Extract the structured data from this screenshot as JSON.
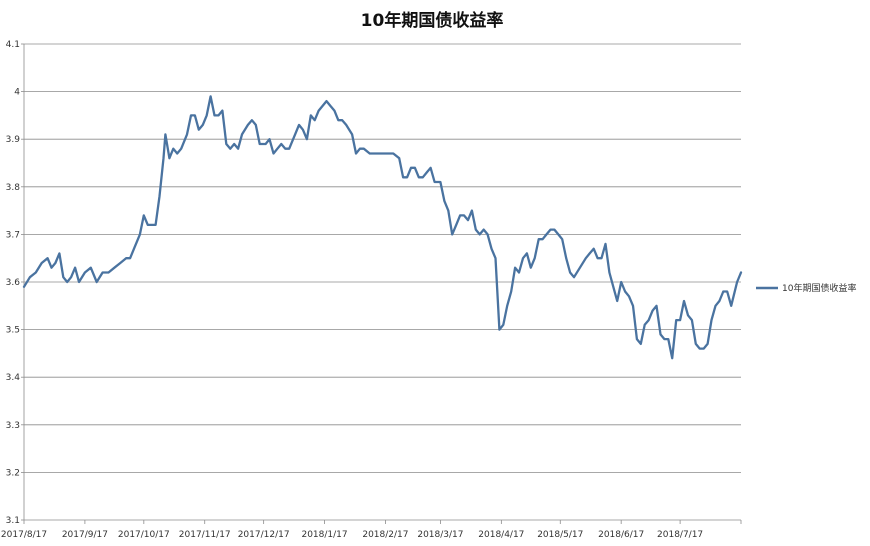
{
  "chart_data": {
    "type": "line",
    "title": "10年期国债收益率",
    "xlabel": "",
    "ylabel": "",
    "ylim": [
      3.1,
      4.1
    ],
    "yticks": [
      3.1,
      3.2,
      3.3,
      3.4,
      3.5,
      3.6,
      3.7,
      3.8,
      3.9,
      4,
      4.1
    ],
    "ytick_labels": [
      "3.1",
      "3.2",
      "3.3",
      "3.4",
      "3.5",
      "3.6",
      "3.7",
      "3.8",
      "3.9",
      "4",
      "4.1"
    ],
    "x_range": [
      "2017/8/17",
      "2018/8/17"
    ],
    "xticks": [
      "2017/8/17",
      "2017/9/17",
      "2017/10/17",
      "2017/11/17",
      "2017/12/17",
      "2018/1/17",
      "2018/2/17",
      "2018/3/17",
      "2018/4/17",
      "2018/5/17",
      "2018/6/17",
      "2018/7/17"
    ],
    "grid": "horizontal",
    "legend_position": "right",
    "color": "#4a73a0",
    "series": [
      {
        "name": "10年期国债收益率",
        "points": [
          [
            "2017/8/17",
            3.59
          ],
          [
            "2017/8/20",
            3.61
          ],
          [
            "2017/8/23",
            3.62
          ],
          [
            "2017/8/26",
            3.64
          ],
          [
            "2017/8/29",
            3.65
          ],
          [
            "2017/8/31",
            3.63
          ],
          [
            "2017/9/2",
            3.64
          ],
          [
            "2017/9/4",
            3.66
          ],
          [
            "2017/9/6",
            3.61
          ],
          [
            "2017/9/8",
            3.6
          ],
          [
            "2017/9/10",
            3.61
          ],
          [
            "2017/9/12",
            3.63
          ],
          [
            "2017/9/14",
            3.6
          ],
          [
            "2017/9/17",
            3.62
          ],
          [
            "2017/9/20",
            3.63
          ],
          [
            "2017/9/23",
            3.6
          ],
          [
            "2017/9/26",
            3.62
          ],
          [
            "2017/9/29",
            3.62
          ],
          [
            "2017/10/2",
            3.63
          ],
          [
            "2017/10/5",
            3.64
          ],
          [
            "2017/10/8",
            3.65
          ],
          [
            "2017/10/10",
            3.65
          ],
          [
            "2017/10/12",
            3.67
          ],
          [
            "2017/10/15",
            3.7
          ],
          [
            "2017/10/17",
            3.74
          ],
          [
            "2017/10/19",
            3.72
          ],
          [
            "2017/10/21",
            3.72
          ],
          [
            "2017/10/23",
            3.72
          ],
          [
            "2017/10/25",
            3.78
          ],
          [
            "2017/10/27",
            3.86
          ],
          [
            "2017/10/28",
            3.91
          ],
          [
            "2017/10/30",
            3.86
          ],
          [
            "2017/11/1",
            3.88
          ],
          [
            "2017/11/3",
            3.87
          ],
          [
            "2017/11/5",
            3.88
          ],
          [
            "2017/11/8",
            3.91
          ],
          [
            "2017/11/10",
            3.95
          ],
          [
            "2017/11/12",
            3.95
          ],
          [
            "2017/11/14",
            3.92
          ],
          [
            "2017/11/16",
            3.93
          ],
          [
            "2017/11/18",
            3.95
          ],
          [
            "2017/11/20",
            3.99
          ],
          [
            "2017/11/22",
            3.95
          ],
          [
            "2017/11/24",
            3.95
          ],
          [
            "2017/11/26",
            3.96
          ],
          [
            "2017/11/28",
            3.89
          ],
          [
            "2017/11/30",
            3.88
          ],
          [
            "2017/12/2",
            3.89
          ],
          [
            "2017/12/4",
            3.88
          ],
          [
            "2017/12/6",
            3.91
          ],
          [
            "2017/12/9",
            3.93
          ],
          [
            "2017/12/11",
            3.94
          ],
          [
            "2017/12/13",
            3.93
          ],
          [
            "2017/12/15",
            3.89
          ],
          [
            "2017/12/18",
            3.89
          ],
          [
            "2017/12/20",
            3.9
          ],
          [
            "2017/12/22",
            3.87
          ],
          [
            "2017/12/24",
            3.88
          ],
          [
            "2017/12/26",
            3.89
          ],
          [
            "2017/12/28",
            3.88
          ],
          [
            "2017/12/30",
            3.88
          ],
          [
            "2018/1/2",
            3.91
          ],
          [
            "2018/1/4",
            3.93
          ],
          [
            "2018/1/6",
            3.92
          ],
          [
            "2018/1/8",
            3.9
          ],
          [
            "2018/1/10",
            3.95
          ],
          [
            "2018/1/12",
            3.94
          ],
          [
            "2018/1/14",
            3.96
          ],
          [
            "2018/1/16",
            3.97
          ],
          [
            "2018/1/18",
            3.98
          ],
          [
            "2018/1/20",
            3.97
          ],
          [
            "2018/1/22",
            3.96
          ],
          [
            "2018/1/24",
            3.94
          ],
          [
            "2018/1/26",
            3.94
          ],
          [
            "2018/1/28",
            3.93
          ],
          [
            "2018/1/31",
            3.91
          ],
          [
            "2018/2/2",
            3.87
          ],
          [
            "2018/2/4",
            3.88
          ],
          [
            "2018/2/6",
            3.88
          ],
          [
            "2018/2/9",
            3.87
          ],
          [
            "2018/2/13",
            3.87
          ],
          [
            "2018/2/17",
            3.87
          ],
          [
            "2018/2/21",
            3.87
          ],
          [
            "2018/2/24",
            3.86
          ],
          [
            "2018/2/26",
            3.82
          ],
          [
            "2018/2/28",
            3.82
          ],
          [
            "2018/3/2",
            3.84
          ],
          [
            "2018/3/4",
            3.84
          ],
          [
            "2018/3/6",
            3.82
          ],
          [
            "2018/3/8",
            3.82
          ],
          [
            "2018/3/10",
            3.83
          ],
          [
            "2018/3/12",
            3.84
          ],
          [
            "2018/3/14",
            3.81
          ],
          [
            "2018/3/17",
            3.81
          ],
          [
            "2018/3/19",
            3.77
          ],
          [
            "2018/3/21",
            3.75
          ],
          [
            "2018/3/23",
            3.7
          ],
          [
            "2018/3/25",
            3.72
          ],
          [
            "2018/3/27",
            3.74
          ],
          [
            "2018/3/29",
            3.74
          ],
          [
            "2018/3/31",
            3.73
          ],
          [
            "2018/4/2",
            3.75
          ],
          [
            "2018/4/4",
            3.71
          ],
          [
            "2018/4/6",
            3.7
          ],
          [
            "2018/4/8",
            3.71
          ],
          [
            "2018/4/10",
            3.7
          ],
          [
            "2018/4/12",
            3.67
          ],
          [
            "2018/4/14",
            3.65
          ],
          [
            "2018/4/16",
            3.5
          ],
          [
            "2018/4/18",
            3.51
          ],
          [
            "2018/4/20",
            3.55
          ],
          [
            "2018/4/22",
            3.58
          ],
          [
            "2018/4/24",
            3.63
          ],
          [
            "2018/4/26",
            3.62
          ],
          [
            "2018/4/28",
            3.65
          ],
          [
            "2018/4/30",
            3.66
          ],
          [
            "2018/5/2",
            3.63
          ],
          [
            "2018/5/4",
            3.65
          ],
          [
            "2018/5/6",
            3.69
          ],
          [
            "2018/5/8",
            3.69
          ],
          [
            "2018/5/10",
            3.7
          ],
          [
            "2018/5/12",
            3.71
          ],
          [
            "2018/5/14",
            3.71
          ],
          [
            "2018/5/16",
            3.7
          ],
          [
            "2018/5/18",
            3.69
          ],
          [
            "2018/5/20",
            3.65
          ],
          [
            "2018/5/22",
            3.62
          ],
          [
            "2018/5/24",
            3.61
          ],
          [
            "2018/5/27",
            3.63
          ],
          [
            "2018/5/30",
            3.65
          ],
          [
            "2018/6/1",
            3.66
          ],
          [
            "2018/6/3",
            3.67
          ],
          [
            "2018/6/5",
            3.65
          ],
          [
            "2018/6/7",
            3.65
          ],
          [
            "2018/6/9",
            3.68
          ],
          [
            "2018/6/11",
            3.62
          ],
          [
            "2018/6/13",
            3.59
          ],
          [
            "2018/6/15",
            3.56
          ],
          [
            "2018/6/17",
            3.6
          ],
          [
            "2018/6/19",
            3.58
          ],
          [
            "2018/6/21",
            3.57
          ],
          [
            "2018/6/23",
            3.55
          ],
          [
            "2018/6/25",
            3.48
          ],
          [
            "2018/6/27",
            3.47
          ],
          [
            "2018/6/29",
            3.51
          ],
          [
            "2018/7/1",
            3.52
          ],
          [
            "2018/7/3",
            3.54
          ],
          [
            "2018/7/5",
            3.55
          ],
          [
            "2018/7/7",
            3.49
          ],
          [
            "2018/7/9",
            3.48
          ],
          [
            "2018/7/11",
            3.48
          ],
          [
            "2018/7/13",
            3.44
          ],
          [
            "2018/7/15",
            3.52
          ],
          [
            "2018/7/17",
            3.52
          ],
          [
            "2018/7/19",
            3.56
          ],
          [
            "2018/7/21",
            3.53
          ],
          [
            "2018/7/23",
            3.52
          ],
          [
            "2018/7/25",
            3.47
          ],
          [
            "2018/7/27",
            3.46
          ],
          [
            "2018/7/29",
            3.46
          ],
          [
            "2018/7/31",
            3.47
          ],
          [
            "2018/8/2",
            3.52
          ],
          [
            "2018/8/4",
            3.55
          ],
          [
            "2018/8/6",
            3.56
          ],
          [
            "2018/8/8",
            3.58
          ],
          [
            "2018/8/10",
            3.58
          ],
          [
            "2018/8/12",
            3.55
          ],
          [
            "2018/8/15",
            3.6
          ],
          [
            "2018/8/17",
            3.62
          ]
        ]
      }
    ]
  }
}
